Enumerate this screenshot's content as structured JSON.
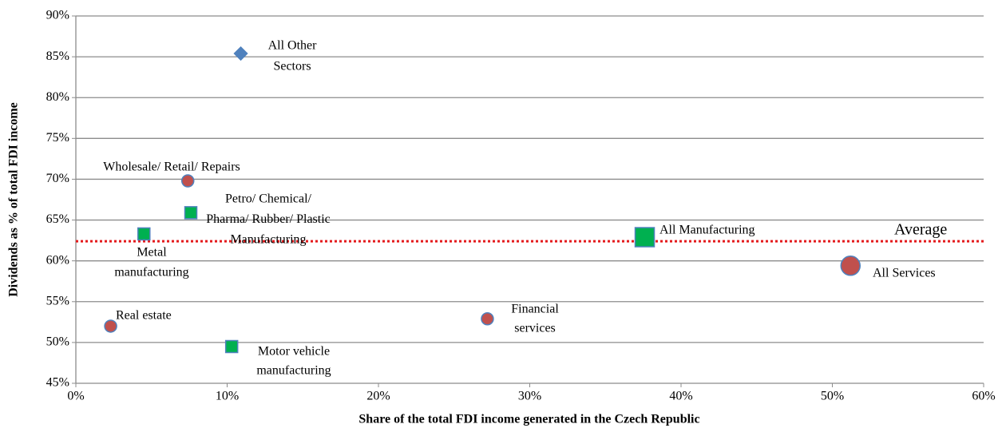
{
  "chart_data": {
    "type": "scatter",
    "xlabel": "Share of the total FDI income generated in the Czech Republic",
    "ylabel": "Dividends as % of total FDI income",
    "xlim": [
      0,
      60
    ],
    "ylim": [
      45,
      90
    ],
    "xticks": [
      {
        "value": 0,
        "label": "0%"
      },
      {
        "value": 10,
        "label": "10%"
      },
      {
        "value": 20,
        "label": "20%"
      },
      {
        "value": 30,
        "label": "30%"
      },
      {
        "value": 40,
        "label": "40%"
      },
      {
        "value": 50,
        "label": "50%"
      },
      {
        "value": 60,
        "label": "60%"
      }
    ],
    "yticks": [
      {
        "value": 45,
        "label": "45%"
      },
      {
        "value": 50,
        "label": "50%"
      },
      {
        "value": 55,
        "label": "55%"
      },
      {
        "value": 60,
        "label": "60%"
      },
      {
        "value": 65,
        "label": "65%"
      },
      {
        "value": 70,
        "label": "70%"
      },
      {
        "value": 75,
        "label": "75%"
      },
      {
        "value": 80,
        "label": "80%"
      },
      {
        "value": 85,
        "label": "85%"
      },
      {
        "value": 90,
        "label": "90%"
      }
    ],
    "grid": true,
    "points": [
      {
        "label": [
          "All Other",
          "Sectors"
        ],
        "x": 10.9,
        "y": 85.4,
        "marker": "diamond",
        "color": "#4f81bd"
      },
      {
        "label": [
          "Wholesale/ Retail/ Repairs"
        ],
        "x": 7.4,
        "y": 69.8,
        "marker": "circle",
        "color": "#c0504d"
      },
      {
        "label": [
          "Petro/ Chemical/",
          "Pharma/ Rubber/ Plastic",
          "Manufacturing"
        ],
        "x": 7.6,
        "y": 65.9,
        "marker": "square",
        "color": "#00b050"
      },
      {
        "label": [
          "Metal",
          "manufacturing"
        ],
        "x": 4.5,
        "y": 63.3,
        "marker": "square",
        "color": "#00b050"
      },
      {
        "label": [
          "All Manufacturing"
        ],
        "x": 37.6,
        "y": 62.9,
        "marker": "square",
        "color": "#00b050",
        "large": true
      },
      {
        "label": [
          "All Services"
        ],
        "x": 51.2,
        "y": 59.4,
        "marker": "circle",
        "color": "#c0504d",
        "large": true
      },
      {
        "label": [
          "Real estate"
        ],
        "x": 2.3,
        "y": 52.0,
        "marker": "circle",
        "color": "#c0504d"
      },
      {
        "label": [
          "Financial",
          "services"
        ],
        "x": 27.2,
        "y": 52.9,
        "marker": "circle",
        "color": "#c0504d"
      },
      {
        "label": [
          "Motor vehicle",
          "manufacturing"
        ],
        "x": 10.3,
        "y": 49.5,
        "marker": "square",
        "color": "#00b050"
      }
    ],
    "average": {
      "label": "Average",
      "value": 62.4,
      "color": "#e41a1c"
    }
  }
}
